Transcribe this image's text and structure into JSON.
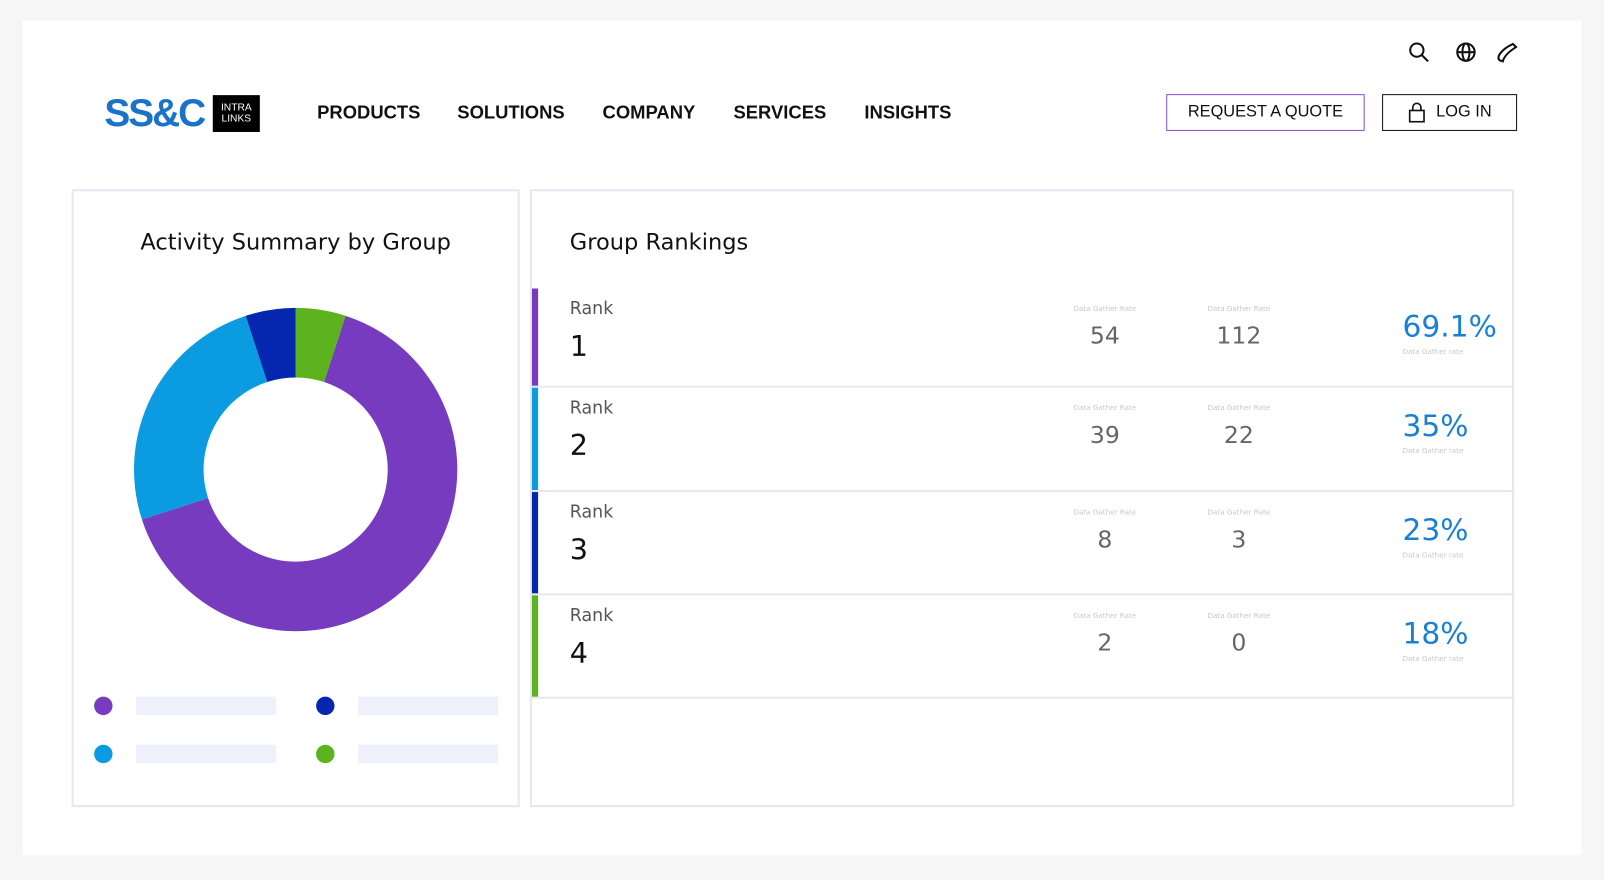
{
  "header": {
    "logo": "SS&C",
    "badge": [
      "INTRA",
      "LINKS"
    ],
    "nav": [
      "PRODUCTS",
      "SOLUTIONS",
      "COMPANY",
      "SERVICES",
      "INSIGHTS"
    ],
    "quote_button": "REQUEST A QUOTE",
    "login_button": "LOG IN"
  },
  "chart_data": {
    "type": "pie",
    "title": "Activity Summary by Group",
    "donut": true,
    "values": [
      5,
      65,
      25,
      5
    ],
    "colors": [
      "#5db31d",
      "#773bbf",
      "#0a9be0",
      "#0527b0"
    ],
    "legend_order": [
      1,
      3,
      2,
      0
    ]
  },
  "rankings": {
    "title": "Group Rankings",
    "rows": [
      {
        "rank_label": "Rank",
        "rank": 1,
        "color": "#773bbf",
        "metric1_label": "Data Gather Rate",
        "metric1": 54,
        "metric2_label": "Data Gather Rate",
        "metric2": 112,
        "rate": "69.1%",
        "rate_label": "Data Gather rate"
      },
      {
        "rank_label": "Rank",
        "rank": 2,
        "color": "#0a9be0",
        "metric1_label": "Data Gather Rate",
        "metric1": 39,
        "metric2_label": "Data Gather Rate",
        "metric2": 22,
        "rate": "35%",
        "rate_label": "Data Gather rate"
      },
      {
        "rank_label": "Rank",
        "rank": 3,
        "color": "#0527b0",
        "metric1_label": "Data Gather Rate",
        "metric1": 8,
        "metric2_label": "Data Gather Rate",
        "metric2": 3,
        "rate": "23%",
        "rate_label": "Data Gather rate"
      },
      {
        "rank_label": "Rank",
        "rank": 4,
        "color": "#5db31d",
        "metric1_label": "Data Gather Rate",
        "metric1": 2,
        "metric2_label": "Data Gather Rate",
        "metric2": 0,
        "rate": "18%",
        "rate_label": "Data Gather rate"
      }
    ]
  }
}
